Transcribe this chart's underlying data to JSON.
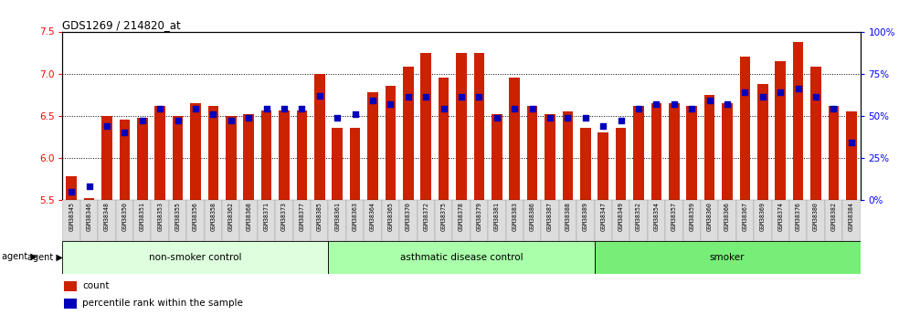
{
  "title": "GDS1269 / 214820_at",
  "ylim_left": [
    5.5,
    7.5
  ],
  "ylim_right": [
    0,
    100
  ],
  "yticks_left": [
    5.5,
    6.0,
    6.5,
    7.0,
    7.5
  ],
  "yticks_right": [
    0,
    25,
    50,
    75,
    100
  ],
  "ytick_labels_right": [
    "0%",
    "25%",
    "50%",
    "75%",
    "100%"
  ],
  "bar_color": "#cc2200",
  "dot_color": "#0000bb",
  "bg_color": "#ffffff",
  "samples": [
    "GSM38345",
    "GSM38346",
    "GSM38348",
    "GSM38350",
    "GSM38351",
    "GSM38353",
    "GSM38355",
    "GSM38356",
    "GSM38358",
    "GSM38362",
    "GSM38368",
    "GSM38371",
    "GSM38373",
    "GSM38377",
    "GSM38385",
    "GSM38361",
    "GSM38363",
    "GSM38364",
    "GSM38365",
    "GSM38370",
    "GSM38372",
    "GSM38375",
    "GSM38378",
    "GSM38379",
    "GSM38381",
    "GSM38383",
    "GSM38386",
    "GSM38387",
    "GSM38388",
    "GSM38389",
    "GSM38347",
    "GSM38349",
    "GSM38352",
    "GSM38354",
    "GSM38357",
    "GSM38359",
    "GSM38360",
    "GSM38366",
    "GSM38367",
    "GSM38369",
    "GSM38374",
    "GSM38376",
    "GSM38380",
    "GSM38382",
    "GSM38384"
  ],
  "count_values": [
    5.78,
    5.52,
    6.5,
    6.45,
    6.48,
    6.62,
    6.5,
    6.65,
    6.62,
    6.5,
    6.52,
    6.56,
    6.56,
    6.56,
    7.0,
    6.36,
    6.36,
    6.78,
    6.85,
    7.08,
    7.25,
    6.95,
    7.25,
    7.25,
    6.52,
    6.95,
    6.62,
    6.52,
    6.55,
    6.36,
    6.3,
    6.36,
    6.62,
    6.65,
    6.65,
    6.62,
    6.75,
    6.65,
    7.2,
    6.88,
    7.15,
    7.38,
    7.08,
    6.62,
    6.55
  ],
  "percentile_values": [
    5.0,
    8.0,
    44.0,
    40.0,
    47.0,
    54.0,
    47.0,
    54.0,
    51.0,
    47.0,
    49.0,
    54.0,
    54.0,
    54.0,
    62.0,
    49.0,
    51.0,
    59.0,
    57.0,
    61.0,
    61.0,
    54.0,
    61.0,
    61.0,
    49.0,
    54.0,
    54.0,
    49.0,
    49.0,
    49.0,
    44.0,
    47.0,
    54.0,
    57.0,
    57.0,
    54.0,
    59.0,
    57.0,
    64.0,
    61.0,
    64.0,
    66.0,
    61.0,
    54.0,
    34.0
  ],
  "groups": [
    {
      "label": "non-smoker control",
      "start": 0,
      "end": 15,
      "color": "#ddffdd"
    },
    {
      "label": "asthmatic disease control",
      "start": 15,
      "end": 30,
      "color": "#aaffaa"
    },
    {
      "label": "smoker",
      "start": 30,
      "end": 45,
      "color": "#77ee77"
    }
  ],
  "legend_items": [
    {
      "label": "count",
      "color": "#cc2200"
    },
    {
      "label": "percentile rank within the sample",
      "color": "#0000bb"
    }
  ],
  "grid_dotted_values": [
    6.0,
    6.5,
    7.0
  ]
}
